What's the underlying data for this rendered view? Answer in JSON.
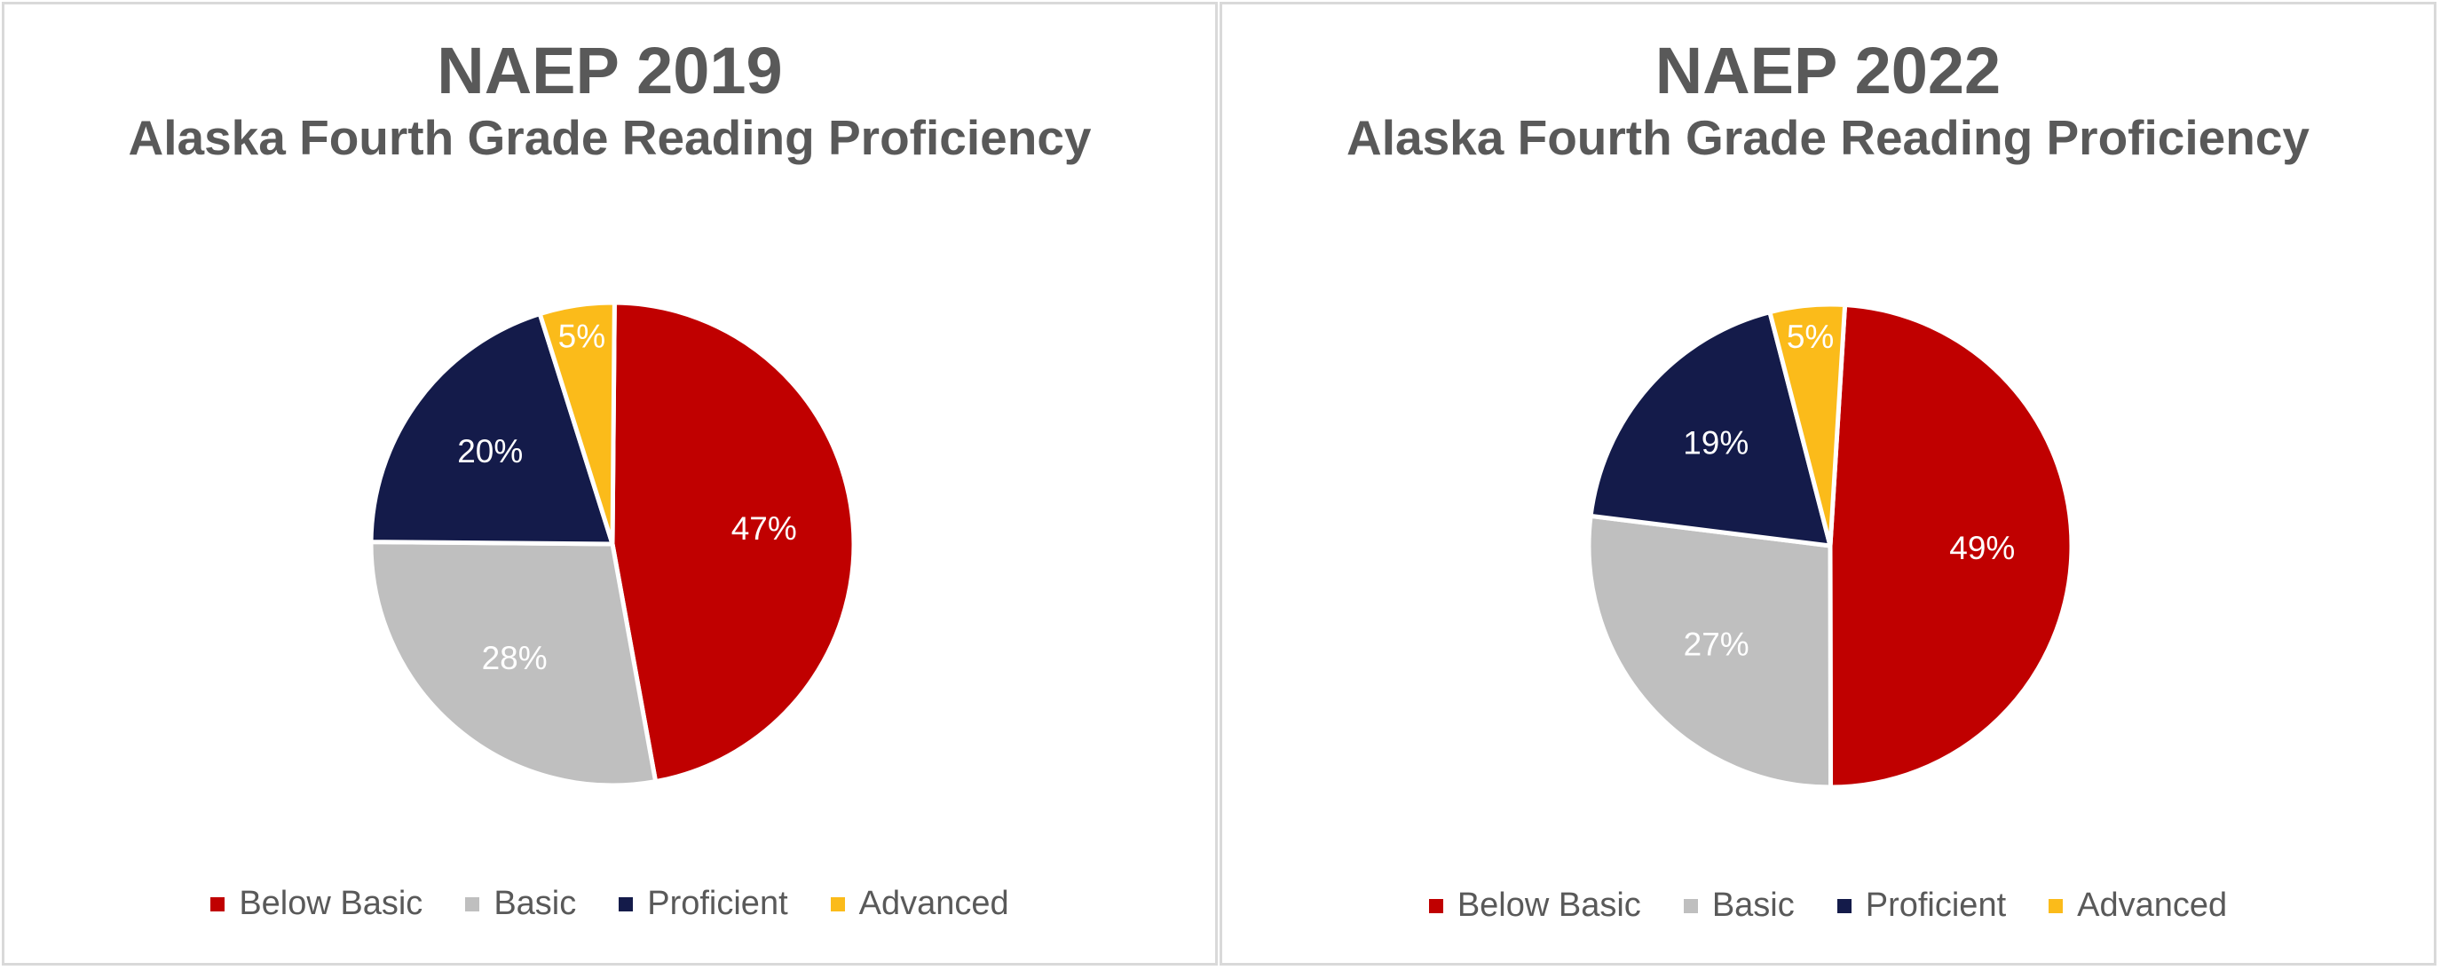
{
  "chart_data": [
    {
      "type": "pie",
      "title": "NAEP 2019",
      "subtitle": "Alaska Fourth Grade Reading Proficiency",
      "legend_position": "bottom",
      "slices": [
        {
          "name": "Below Basic",
          "value": 47,
          "label": "47%",
          "color": "#c00000"
        },
        {
          "name": "Basic",
          "value": 28,
          "label": "28%",
          "color": "#bfbfbf"
        },
        {
          "name": "Proficient",
          "value": 20,
          "label": "20%",
          "color": "#141b4a"
        },
        {
          "name": "Advanced",
          "value": 5,
          "label": "5%",
          "color": "#fbbb1a"
        }
      ]
    },
    {
      "type": "pie",
      "title": "NAEP 2022",
      "subtitle": "Alaska Fourth Grade Reading Proficiency",
      "legend_position": "bottom",
      "slices": [
        {
          "name": "Below Basic",
          "value": 49,
          "label": "49%",
          "color": "#c00000"
        },
        {
          "name": "Basic",
          "value": 27,
          "label": "27%",
          "color": "#bfbfbf"
        },
        {
          "name": "Proficient",
          "value": 19,
          "label": "19%",
          "color": "#141b4a"
        },
        {
          "name": "Advanced",
          "value": 5,
          "label": "5%",
          "color": "#fbbb1a"
        }
      ]
    }
  ]
}
